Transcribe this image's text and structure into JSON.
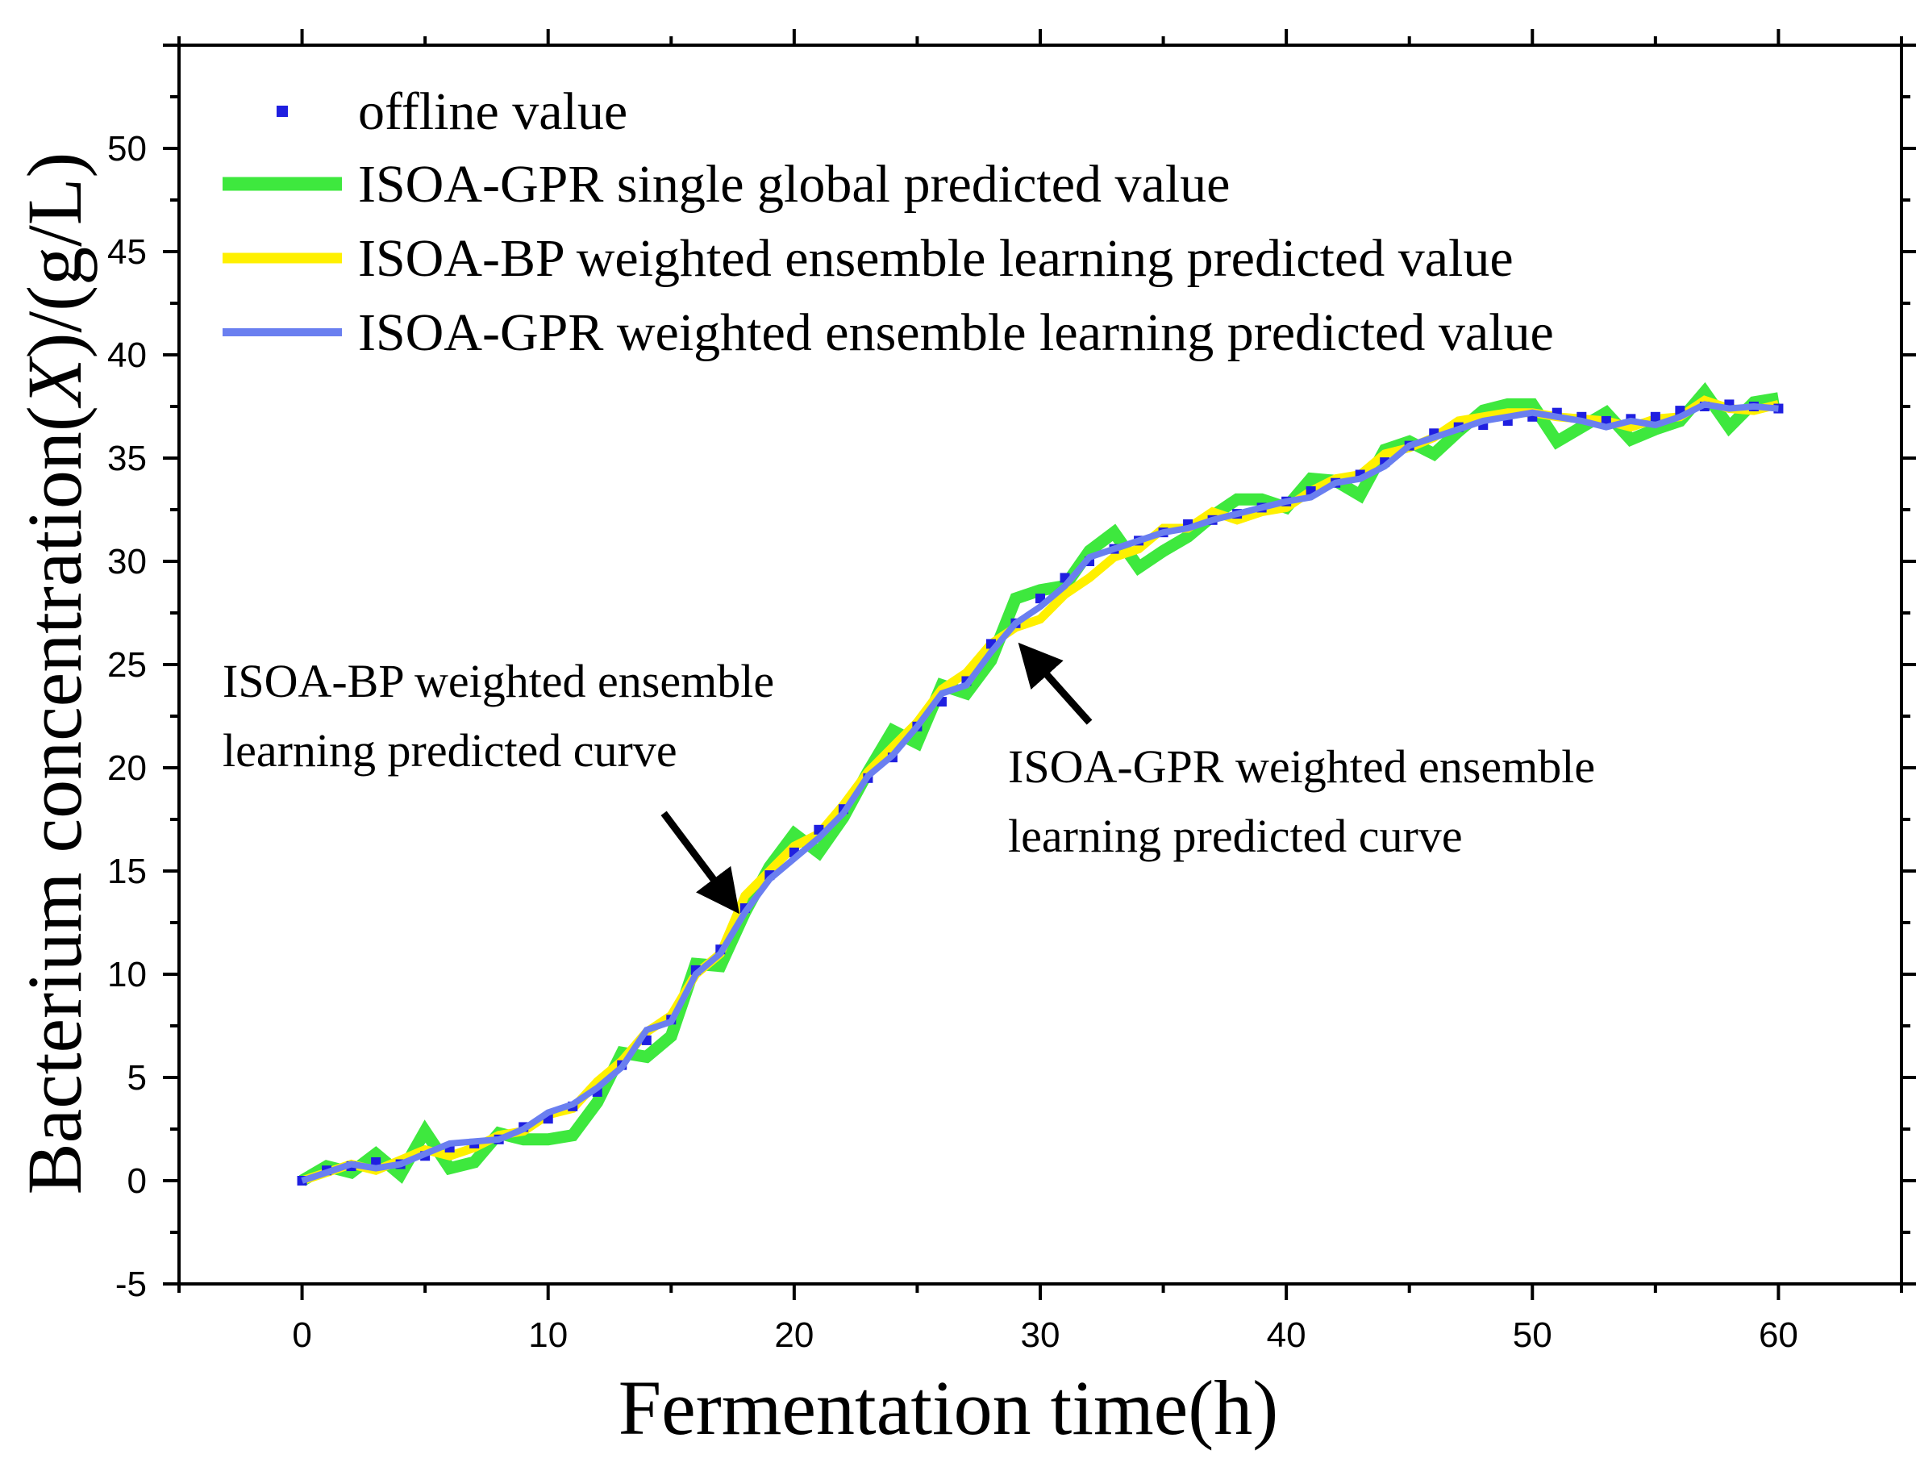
{
  "chart_data": {
    "type": "line",
    "title": "",
    "xlabel": "Fermentation time(h)",
    "ylabel": "Bacterium concentration(X)/(g/L)",
    "xlim": [
      -5,
      65
    ],
    "ylim": [
      -5,
      55
    ],
    "x_ticks": [
      0,
      10,
      20,
      30,
      40,
      50,
      60
    ],
    "y_ticks": [
      -5,
      0,
      5,
      10,
      15,
      20,
      25,
      30,
      35,
      40,
      45,
      50
    ],
    "x_tick_labels": [
      "0",
      "10",
      "20",
      "30",
      "40",
      "50",
      "60"
    ],
    "y_tick_labels": [
      "-5",
      "0",
      "5",
      "10",
      "15",
      "20",
      "25",
      "30",
      "35",
      "40",
      "45",
      "50"
    ],
    "grid": false,
    "legend_position": "top-left",
    "x": [
      0,
      1,
      2,
      3,
      4,
      5,
      6,
      7,
      8,
      9,
      10,
      11,
      12,
      13,
      14,
      15,
      16,
      17,
      18,
      19,
      20,
      21,
      22,
      23,
      24,
      25,
      26,
      27,
      28,
      29,
      30,
      31,
      32,
      33,
      34,
      35,
      36,
      37,
      38,
      39,
      40,
      41,
      42,
      43,
      44,
      45,
      46,
      47,
      48,
      49,
      50,
      51,
      52,
      53,
      54,
      55,
      56,
      57,
      58,
      59,
      60
    ],
    "series": [
      {
        "name": "offline value",
        "style": "markers",
        "color": "#1f1fe0",
        "values": [
          0.0,
          0.5,
          0.7,
          0.9,
          0.8,
          1.2,
          1.6,
          1.8,
          2.0,
          2.6,
          3.0,
          3.6,
          4.3,
          5.6,
          6.8,
          7.8,
          10.2,
          11.2,
          13.2,
          14.8,
          15.9,
          17.0,
          18.0,
          19.5,
          20.5,
          22.0,
          23.2,
          24.2,
          26.0,
          27.0,
          28.2,
          29.2,
          30.0,
          30.6,
          31.0,
          31.4,
          31.8,
          32.0,
          32.3,
          32.6,
          32.9,
          33.4,
          33.8,
          34.2,
          34.8,
          35.6,
          36.2,
          36.5,
          36.6,
          36.8,
          37.0,
          37.2,
          37.0,
          36.8,
          36.9,
          37.0,
          37.3,
          37.5,
          37.6,
          37.5,
          37.4
        ]
      },
      {
        "name": "ISOA-GPR single global predicted value",
        "style": "line",
        "color": "#3ee83e",
        "values": [
          0.0,
          0.7,
          0.4,
          1.3,
          0.3,
          2.4,
          0.6,
          0.9,
          2.3,
          2.0,
          2.0,
          2.2,
          3.8,
          6.2,
          6.0,
          7.0,
          10.5,
          10.4,
          13.0,
          15.2,
          16.8,
          15.9,
          17.6,
          19.8,
          21.8,
          21.2,
          24.0,
          23.6,
          25.2,
          28.2,
          28.6,
          28.8,
          30.5,
          31.4,
          29.7,
          30.5,
          31.2,
          32.2,
          33.0,
          33.0,
          32.6,
          34.0,
          33.9,
          33.2,
          35.4,
          35.8,
          35.2,
          36.3,
          37.3,
          37.6,
          37.6,
          35.8,
          36.5,
          37.2,
          35.9,
          36.4,
          36.8,
          38.2,
          36.5,
          37.7,
          37.9
        ]
      },
      {
        "name": "ISOA-BP weighted ensemble learning predicted value",
        "style": "line",
        "color": "#fff000",
        "values": [
          0.0,
          0.4,
          0.8,
          0.5,
          1.0,
          1.5,
          1.2,
          1.6,
          2.2,
          2.4,
          3.2,
          3.5,
          4.8,
          5.8,
          7.2,
          8.0,
          10.0,
          11.0,
          13.8,
          15.0,
          16.2,
          16.8,
          18.2,
          19.8,
          21.0,
          22.2,
          23.8,
          24.6,
          26.0,
          26.8,
          27.2,
          28.4,
          29.2,
          30.2,
          30.6,
          31.6,
          31.6,
          32.4,
          32.0,
          32.4,
          32.6,
          33.4,
          34.0,
          34.2,
          35.2,
          35.5,
          36.0,
          36.8,
          37.0,
          37.2,
          37.2,
          37.0,
          36.9,
          36.8,
          36.5,
          36.9,
          37.0,
          37.8,
          37.4,
          37.3,
          37.6
        ]
      },
      {
        "name": "ISOA-GPR weighted ensemble learning predicted value",
        "style": "line",
        "color": "#6a7ff0",
        "values": [
          0.0,
          0.4,
          0.8,
          0.6,
          0.8,
          1.3,
          1.8,
          1.9,
          2.0,
          2.5,
          3.3,
          3.7,
          4.5,
          5.5,
          7.3,
          7.7,
          10.0,
          11.0,
          13.0,
          14.6,
          15.6,
          16.6,
          17.8,
          19.6,
          20.6,
          22.0,
          23.6,
          24.0,
          25.6,
          27.0,
          27.8,
          28.8,
          30.2,
          30.6,
          31.0,
          31.4,
          31.6,
          32.0,
          32.3,
          32.6,
          32.9,
          33.1,
          33.8,
          34.0,
          34.6,
          35.6,
          36.0,
          36.4,
          36.8,
          37.0,
          37.2,
          37.0,
          36.8,
          36.5,
          36.8,
          36.6,
          37.0,
          37.6,
          37.4,
          37.5,
          37.4
        ]
      }
    ],
    "annotations": [
      {
        "id": "bp",
        "lines": [
          "ISOA-BP weighted ensemble",
          "learning predicted curve"
        ],
        "arrow_from": [
          14.7,
          17.8
        ],
        "arrow_to": [
          17.6,
          13.2
        ]
      },
      {
        "id": "gpr",
        "lines": [
          "ISOA-GPR weighted ensemble",
          "learning predicted curve"
        ],
        "arrow_from": [
          32.0,
          22.2
        ],
        "arrow_to": [
          29.3,
          25.8
        ]
      }
    ]
  }
}
